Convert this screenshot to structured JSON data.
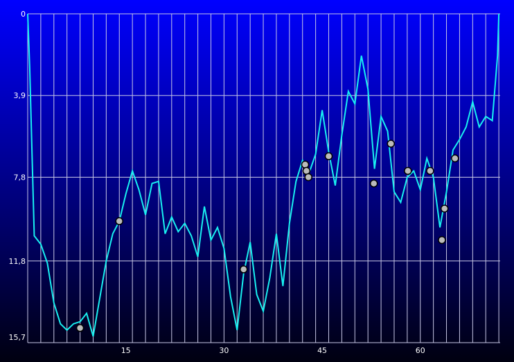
{
  "chart_data": {
    "type": "line",
    "x": [
      0,
      0.3,
      1,
      2,
      3,
      4,
      5,
      6,
      7,
      8,
      9,
      10,
      11,
      12,
      13,
      14,
      15,
      16,
      17,
      18,
      19,
      20,
      21,
      22,
      23,
      24,
      25,
      26,
      27,
      28,
      29,
      30,
      31,
      32,
      33,
      34,
      35,
      36,
      37,
      38,
      39,
      40,
      41,
      42,
      43,
      44,
      45,
      46,
      47,
      48,
      49,
      50,
      51,
      52,
      53,
      54,
      55,
      56,
      57,
      58,
      59,
      60,
      61,
      62,
      63,
      64,
      65,
      66,
      67,
      68,
      69,
      70,
      71,
      71.8,
      72
    ],
    "series": [
      {
        "color": "#19f0f0",
        "values": [
          0,
          2.5,
          10.6,
          11.0,
          11.9,
          13.8,
          14.8,
          15.1,
          14.8,
          14.7,
          14.3,
          15.4,
          13.6,
          11.8,
          10.5,
          9.9,
          8.6,
          7.5,
          8.4,
          9.6,
          8.1,
          8.0,
          10.5,
          9.7,
          10.4,
          10.0,
          10.6,
          11.6,
          9.2,
          10.8,
          10.2,
          11.2,
          13.5,
          15.1,
          12.4,
          10.9,
          13.4,
          14.2,
          12.6,
          10.5,
          13.0,
          10.0,
          8.0,
          7.0,
          7.6,
          6.7,
          4.6,
          6.6,
          8.2,
          5.8,
          3.7,
          4.3,
          2.0,
          3.6,
          7.4,
          4.9,
          5.6,
          8.5,
          9.0,
          7.8,
          7.5,
          8.4,
          6.9,
          7.8,
          10.2,
          8.5,
          6.5,
          6.0,
          5.4,
          4.2,
          5.4,
          4.9,
          5.1,
          2.0,
          0
        ]
      }
    ],
    "markers": {
      "x": [
        8,
        14,
        33,
        42.4,
        42.6,
        42.9,
        46,
        52.9,
        55.5,
        58.1,
        61.5,
        63.3,
        63.7,
        65.3
      ],
      "y": [
        15.0,
        9.9,
        12.2,
        7.2,
        7.5,
        7.8,
        6.8,
        8.1,
        6.2,
        7.5,
        7.5,
        10.8,
        9.3,
        6.9
      ]
    },
    "xlim": [
      0,
      72.2
    ],
    "ylim": [
      0,
      15.7
    ],
    "y_inverted": true,
    "xticks": [
      15,
      30,
      45,
      60
    ],
    "yticks": [
      0,
      {
        "value": 3.9,
        "label": "3,9"
      },
      {
        "value": 7.8,
        "label": "7,8"
      },
      {
        "value": 11.8,
        "label": "11,8"
      },
      {
        "value": 15.7,
        "label": "15,7"
      }
    ],
    "xgrid_step": 2,
    "grid": true
  }
}
